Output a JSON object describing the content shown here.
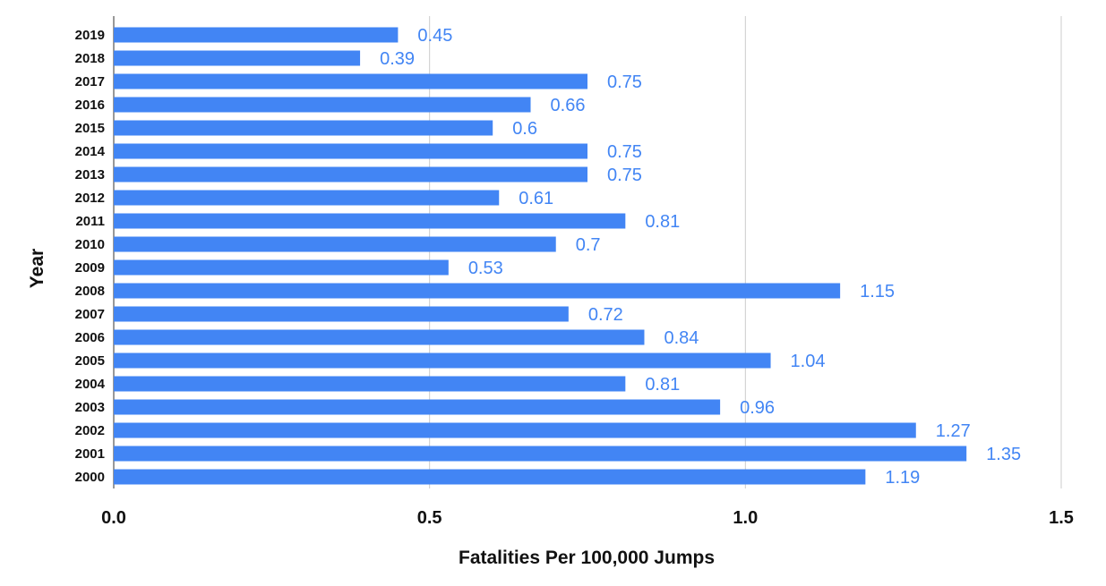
{
  "chart_data": {
    "type": "bar",
    "orientation": "horizontal",
    "categories": [
      "2019",
      "2018",
      "2017",
      "2016",
      "2015",
      "2014",
      "2013",
      "2012",
      "2011",
      "2010",
      "2009",
      "2008",
      "2007",
      "2006",
      "2005",
      "2004",
      "2003",
      "2002",
      "2001",
      "2000"
    ],
    "values": [
      0.45,
      0.39,
      0.75,
      0.66,
      0.6,
      0.75,
      0.75,
      0.61,
      0.81,
      0.7,
      0.53,
      1.15,
      0.72,
      0.84,
      1.04,
      0.81,
      0.96,
      1.27,
      1.35,
      1.19
    ],
    "data_labels": [
      "0.45",
      "0.39",
      "0.75",
      "0.66",
      "0.6",
      "0.75",
      "0.75",
      "0.61",
      "0.81",
      "0.7",
      "0.53",
      "1.15",
      "0.72",
      "0.84",
      "1.04",
      "0.81",
      "0.96",
      "1.27",
      "1.35",
      "1.19"
    ],
    "xlabel": "Fatalities Per 100,000 Jumps",
    "ylabel": "Year",
    "xlim": [
      0,
      1.5
    ],
    "x_ticks": [
      0,
      0.5,
      1.0,
      1.5
    ],
    "x_tick_labels": [
      "0.0",
      "0.5",
      "1.0",
      "1.5"
    ],
    "grid": true,
    "legend": "none",
    "bar_color": "#4285f4",
    "label_color": "#4285f4"
  }
}
